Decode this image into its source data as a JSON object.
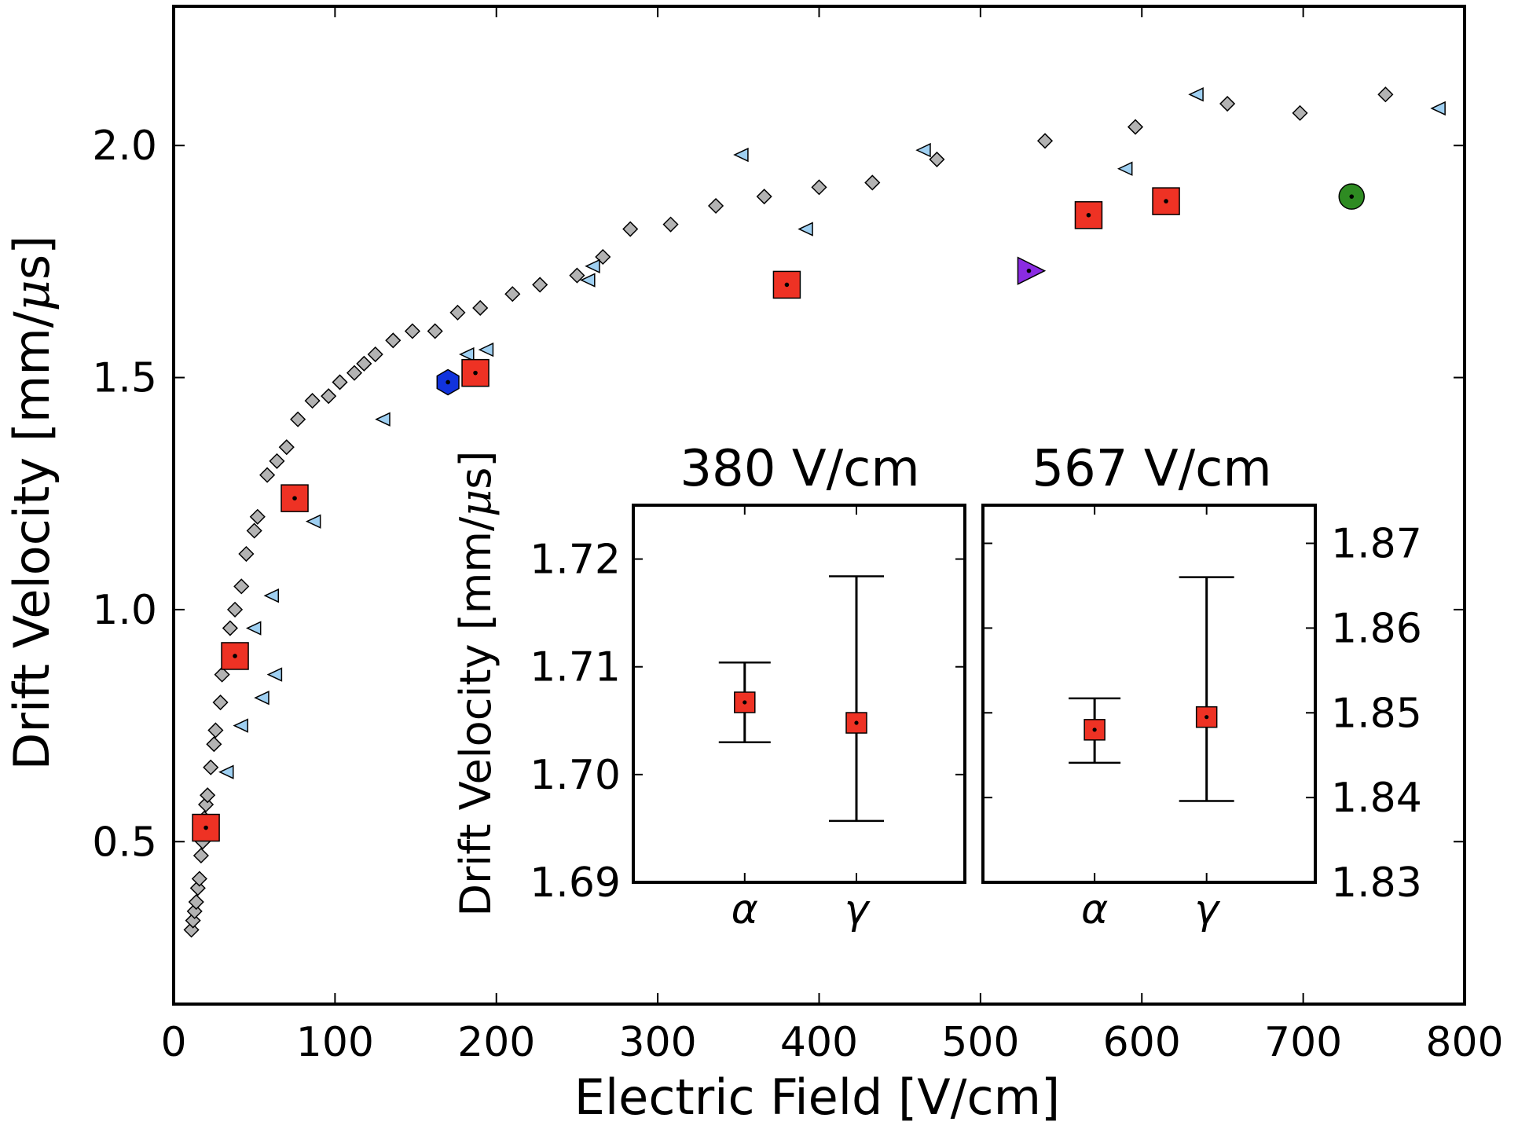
{
  "chart_data": {
    "type": "scatter",
    "main": {
      "xlabel": "Electric Field [V/cm]",
      "ylabel_prefix": "Drift Velocity [mm/",
      "ylabel_mu": "μ",
      "ylabel_suffix": "s]",
      "xlim": [
        0,
        800
      ],
      "ylim": [
        0.15,
        2.3
      ],
      "xticks": [
        "0",
        "100",
        "200",
        "300",
        "400",
        "500",
        "600",
        "700",
        "800"
      ],
      "yticks": [
        "0.5",
        "1.0",
        "1.5",
        "2.0"
      ],
      "series": [
        {
          "name": "gray-diamonds",
          "marker": "diamond",
          "color": "#b3b3b3",
          "points": [
            [
              11,
              0.31
            ],
            [
              12,
              0.33
            ],
            [
              13,
              0.35
            ],
            [
              14,
              0.37
            ],
            [
              15,
              0.4
            ],
            [
              16,
              0.42
            ],
            [
              17,
              0.47
            ],
            [
              18,
              0.5
            ],
            [
              19,
              0.55
            ],
            [
              20,
              0.58
            ],
            [
              21,
              0.6
            ],
            [
              23,
              0.66
            ],
            [
              25,
              0.71
            ],
            [
              26,
              0.74
            ],
            [
              29,
              0.8
            ],
            [
              30,
              0.86
            ],
            [
              35,
              0.96
            ],
            [
              38,
              1.0
            ],
            [
              42,
              1.05
            ],
            [
              45,
              1.12
            ],
            [
              50,
              1.17
            ],
            [
              52,
              1.2
            ],
            [
              58,
              1.29
            ],
            [
              64,
              1.32
            ],
            [
              70,
              1.35
            ],
            [
              77,
              1.41
            ],
            [
              86,
              1.45
            ],
            [
              96,
              1.46
            ],
            [
              103,
              1.49
            ],
            [
              112,
              1.51
            ],
            [
              118,
              1.53
            ],
            [
              125,
              1.55
            ],
            [
              136,
              1.58
            ],
            [
              148,
              1.6
            ],
            [
              162,
              1.6
            ],
            [
              176,
              1.64
            ],
            [
              190,
              1.65
            ],
            [
              210,
              1.68
            ],
            [
              227,
              1.7
            ],
            [
              250,
              1.72
            ],
            [
              266,
              1.76
            ],
            [
              283,
              1.82
            ],
            [
              308,
              1.83
            ],
            [
              336,
              1.87
            ],
            [
              366,
              1.89
            ],
            [
              400,
              1.91
            ],
            [
              433,
              1.92
            ],
            [
              473,
              1.97
            ],
            [
              540,
              2.01
            ],
            [
              596,
              2.04
            ],
            [
              653,
              2.09
            ],
            [
              698,
              2.07
            ],
            [
              751,
              2.11
            ]
          ]
        },
        {
          "name": "blue-triangles",
          "marker": "triangle-left",
          "color": "#9fd0f2",
          "points": [
            [
              33,
              0.65
            ],
            [
              42,
              0.75
            ],
            [
              50,
              0.96
            ],
            [
              55,
              0.81
            ],
            [
              61,
              1.03
            ],
            [
              63,
              0.86
            ],
            [
              87,
              1.19
            ],
            [
              130,
              1.41
            ],
            [
              182,
              1.55
            ],
            [
              194,
              1.56
            ],
            [
              257,
              1.71
            ],
            [
              260,
              1.74
            ],
            [
              352,
              1.98
            ],
            [
              392,
              1.82
            ],
            [
              465,
              1.99
            ],
            [
              590,
              1.95
            ],
            [
              634,
              2.11
            ],
            [
              784,
              2.08
            ]
          ]
        },
        {
          "name": "red-squares",
          "marker": "square",
          "color": "#ee3224",
          "points": [
            [
              20,
              0.53
            ],
            [
              38,
              0.9
            ],
            [
              75,
              1.24
            ],
            [
              187,
              1.51
            ],
            [
              380,
              1.7
            ],
            [
              567,
              1.85
            ],
            [
              615,
              1.88
            ]
          ]
        },
        {
          "name": "blue-hexagon",
          "marker": "hexagon",
          "color": "#1133dd",
          "points": [
            [
              170,
              1.49
            ]
          ]
        },
        {
          "name": "purple-triangle",
          "marker": "triangle-right",
          "color": "#8a2be2",
          "points": [
            [
              530,
              1.73
            ]
          ]
        },
        {
          "name": "green-circle",
          "marker": "circle",
          "color": "#2e8b22",
          "points": [
            [
              730,
              1.89
            ]
          ]
        }
      ]
    },
    "insets": [
      {
        "title": "380 V/cm",
        "ylim": [
          1.69,
          1.725
        ],
        "yticks": [
          "1.69",
          "1.70",
          "1.71",
          "1.72"
        ],
        "categories": [
          "α",
          "γ"
        ],
        "values": [
          1.7067,
          1.7048
        ],
        "err_low": [
          1.703,
          1.6957
        ],
        "err_high": [
          1.7104,
          1.7184
        ]
      },
      {
        "title": "567 V/cm",
        "ylim": [
          1.83,
          1.8745
        ],
        "yticks": [
          "1.83",
          "1.84",
          "1.85",
          "1.86",
          "1.87"
        ],
        "categories": [
          "α",
          "γ"
        ],
        "values": [
          1.848,
          1.8495
        ],
        "err_low": [
          1.8441,
          1.8396
        ],
        "err_high": [
          1.8517,
          1.866
        ]
      }
    ],
    "inset_ylabel_prefix": "Drift Velocity [mm/",
    "inset_ylabel_mu": "μ",
    "inset_ylabel_suffix": "s]"
  }
}
